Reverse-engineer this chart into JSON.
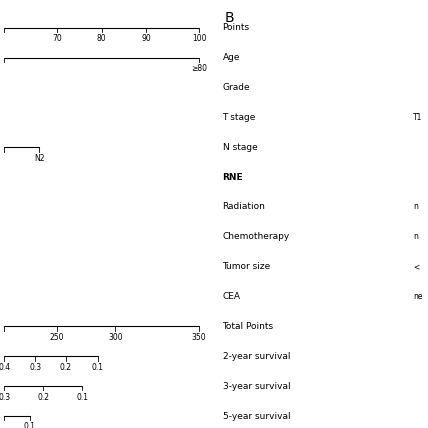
{
  "title": "B",
  "labels": [
    "Points",
    "Age",
    "Grade",
    "T stage",
    "N stage",
    "RNE",
    "Radiation",
    "Chemotherapy",
    "Tumor size",
    "CEA",
    "Total Points",
    "2-year survival",
    "3-year survival",
    "5-year survival"
  ],
  "background_color": "#ffffff",
  "text_color": "#000000",
  "line_color": "#000000",
  "fontsize_labels": 6.5,
  "fontsize_ticks": 5.5,
  "fontsize_title": 10
}
